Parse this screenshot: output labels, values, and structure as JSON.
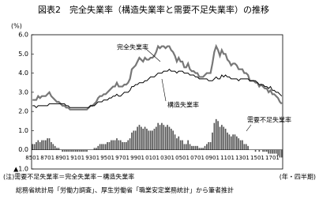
{
  "chart_data": {
    "type": "combo",
    "title": "図表2　完全失業率（構造失業率と需要不足失業率）の推移",
    "y_unit": "(%)",
    "x_unit": "(年・四半期)",
    "note": "(注)需要不足失業率＝完全失業率－構造失業率",
    "source": "総務省統計局「労働力調査」、厚生労働省「職業安定業務統計」から筆者推計",
    "categories": [
      "8501",
      null,
      null,
      null,
      null,
      null,
      null,
      null,
      "8701",
      null,
      null,
      null,
      null,
      null,
      null,
      null,
      "8901",
      null,
      null,
      null,
      null,
      null,
      null,
      null,
      "9101",
      null,
      null,
      null,
      null,
      null,
      null,
      null,
      "9301",
      null,
      null,
      null,
      null,
      null,
      null,
      null,
      "9501",
      null,
      null,
      null,
      null,
      null,
      null,
      null,
      "9701",
      null,
      null,
      null,
      null,
      null,
      null,
      null,
      "9901",
      null,
      null,
      null,
      null,
      null,
      null,
      null,
      "0101",
      null,
      null,
      null,
      null,
      null,
      null,
      null,
      "0301",
      null,
      null,
      null,
      null,
      null,
      null,
      null,
      "0501",
      null,
      null,
      null,
      null,
      null,
      null,
      null,
      "0701",
      null,
      null,
      null,
      null,
      null,
      null,
      null,
      "0901",
      null,
      null,
      null,
      null,
      null,
      null,
      null,
      "1101",
      null,
      null,
      null,
      null,
      null,
      null,
      null,
      "1301",
      null,
      null,
      null,
      null,
      null,
      null,
      null,
      "1501",
      null,
      null,
      null,
      null,
      null,
      null,
      null,
      "1701",
      null,
      null,
      null,
      null,
      null
    ],
    "ylim": [
      -1,
      6
    ],
    "yticks": [
      {
        "value": -1,
        "label": "▲1.0"
      },
      {
        "value": 0,
        "label": "0.0"
      },
      {
        "value": 1,
        "label": "1.0"
      },
      {
        "value": 2,
        "label": "2.0"
      },
      {
        "value": 3,
        "label": "3.0"
      },
      {
        "value": 4,
        "label": "4.0"
      },
      {
        "value": 5,
        "label": "5.0"
      },
      {
        "value": 6,
        "label": "6.0"
      }
    ],
    "grid": false,
    "series": [
      {
        "name": "完全失業率",
        "type": "line",
        "color": "#777777",
        "values": [
          2.6,
          2.6,
          2.6,
          2.8,
          2.7,
          2.8,
          2.8,
          2.8,
          2.9,
          3.0,
          2.8,
          2.7,
          2.6,
          2.5,
          2.5,
          2.4,
          2.3,
          2.3,
          2.2,
          2.2,
          2.1,
          2.1,
          2.1,
          2.1,
          2.1,
          2.1,
          2.1,
          2.1,
          2.1,
          2.1,
          2.2,
          2.3,
          2.3,
          2.4,
          2.5,
          2.7,
          2.8,
          2.8,
          2.9,
          2.9,
          3.0,
          3.1,
          3.2,
          3.3,
          3.3,
          3.5,
          3.3,
          3.3,
          3.3,
          3.4,
          3.4,
          3.5,
          3.7,
          4.2,
          4.3,
          4.4,
          4.6,
          4.8,
          4.7,
          4.6,
          4.8,
          4.7,
          4.7,
          4.8,
          4.8,
          4.9,
          5.1,
          5.4,
          5.3,
          5.4,
          5.4,
          5.3,
          5.4,
          5.4,
          5.2,
          5.1,
          4.9,
          4.6,
          4.8,
          4.6,
          4.6,
          4.3,
          4.3,
          4.5,
          4.2,
          4.1,
          4.1,
          4.0,
          4.0,
          3.8,
          3.8,
          3.8,
          3.9,
          4.0,
          4.0,
          4.0,
          4.5,
          5.1,
          5.4,
          5.2,
          4.9,
          5.2,
          5.0,
          5.0,
          4.7,
          4.6,
          4.4,
          4.5,
          4.5,
          4.4,
          4.2,
          4.2,
          4.2,
          4.0,
          4.0,
          3.9,
          3.6,
          3.6,
          3.6,
          3.5,
          3.5,
          3.3,
          3.4,
          3.3,
          3.2,
          3.2,
          3.0,
          3.1,
          2.9,
          2.9,
          2.8,
          2.7,
          2.5,
          2.4
        ]
      },
      {
        "name": "構造失業率",
        "type": "line",
        "color": "#000000",
        "values": [
          2.3,
          2.3,
          2.2,
          2.3,
          2.3,
          2.3,
          2.3,
          2.3,
          2.3,
          2.4,
          2.4,
          2.4,
          2.4,
          2.4,
          2.4,
          2.4,
          2.4,
          2.4,
          2.3,
          2.3,
          2.2,
          2.2,
          2.2,
          2.2,
          2.2,
          2.2,
          2.2,
          2.2,
          2.2,
          2.2,
          2.2,
          2.3,
          2.3,
          2.3,
          2.4,
          2.5,
          2.5,
          2.5,
          2.6,
          2.6,
          2.6,
          2.7,
          2.7,
          2.8,
          2.8,
          2.9,
          2.8,
          2.8,
          2.9,
          3.0,
          3.0,
          3.0,
          3.1,
          3.3,
          3.3,
          3.4,
          3.4,
          3.5,
          3.5,
          3.5,
          3.6,
          3.6,
          3.7,
          3.8,
          3.8,
          3.8,
          3.9,
          4.0,
          4.0,
          4.0,
          4.1,
          4.1,
          4.1,
          4.2,
          4.1,
          4.1,
          4.1,
          4.0,
          4.1,
          4.1,
          4.1,
          4.0,
          4.0,
          4.0,
          3.9,
          3.9,
          3.9,
          3.8,
          3.8,
          3.7,
          3.7,
          3.7,
          3.7,
          3.7,
          3.6,
          3.6,
          3.6,
          3.7,
          3.8,
          3.7,
          3.7,
          3.9,
          3.8,
          3.9,
          3.8,
          3.8,
          3.7,
          3.7,
          3.7,
          3.7,
          3.6,
          3.7,
          3.7,
          3.7,
          3.7,
          3.7,
          3.6,
          3.6,
          3.6,
          3.6,
          3.5,
          3.4,
          3.4,
          3.4,
          3.3,
          3.3,
          3.2,
          3.3,
          3.1,
          3.1,
          3.0,
          3.0,
          2.9,
          2.8
        ]
      },
      {
        "name": "需要不足失業率",
        "type": "bar",
        "color": "#555555",
        "values": [
          0.3,
          0.3,
          0.4,
          0.5,
          0.4,
          0.5,
          0.5,
          0.5,
          0.6,
          0.6,
          0.4,
          0.3,
          0.2,
          0.1,
          0.1,
          0.0,
          -0.1,
          -0.1,
          -0.1,
          -0.1,
          -0.1,
          -0.1,
          -0.1,
          -0.1,
          -0.1,
          -0.1,
          -0.1,
          -0.1,
          -0.1,
          -0.1,
          0.0,
          0.0,
          0.0,
          0.1,
          0.1,
          0.2,
          0.3,
          0.3,
          0.3,
          0.3,
          0.4,
          0.4,
          0.5,
          0.5,
          0.5,
          0.6,
          0.5,
          0.5,
          0.4,
          0.4,
          0.4,
          0.5,
          0.6,
          0.9,
          1.0,
          1.0,
          1.2,
          1.3,
          1.2,
          1.1,
          1.2,
          1.1,
          1.0,
          1.0,
          1.0,
          1.1,
          1.2,
          1.4,
          1.3,
          1.4,
          1.3,
          1.2,
          1.3,
          1.2,
          1.1,
          1.0,
          0.8,
          0.6,
          0.7,
          0.5,
          0.5,
          0.3,
          0.3,
          0.5,
          0.3,
          0.2,
          0.2,
          0.2,
          0.2,
          0.1,
          0.1,
          0.1,
          0.2,
          0.3,
          0.4,
          0.4,
          0.9,
          1.4,
          1.6,
          1.5,
          1.2,
          1.3,
          1.2,
          1.1,
          0.9,
          0.8,
          0.7,
          0.8,
          0.8,
          0.7,
          0.6,
          0.5,
          0.5,
          0.3,
          0.3,
          0.2,
          0.0,
          0.0,
          0.0,
          -0.1,
          0.0,
          -0.1,
          0.0,
          -0.1,
          -0.1,
          -0.1,
          -0.2,
          -0.2,
          -0.2,
          -0.2,
          -0.2,
          -0.3,
          -0.4,
          -0.4
        ]
      }
    ]
  }
}
